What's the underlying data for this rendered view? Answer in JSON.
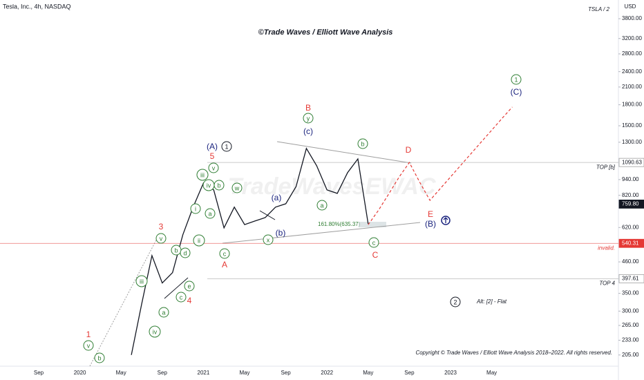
{
  "chart_data": {
    "type": "line",
    "title": "©Trade Waves / Elliott Wave Analysis",
    "symbol": "Tesla, Inc., 4h, NASDAQ",
    "ratio_label": "TSLA / 2",
    "currency": "USD",
    "watermark": "TradeWavesEWAC",
    "copyright": "Copyright © Trade Waves / Elliott Wave Analysis 2018–2022. All rights reserved.",
    "alt_label": "Alt: [2] - Flat",
    "fib_label": "161.80%(635.37)",
    "log_scale": true,
    "grid": false,
    "categories": [
      "Sep",
      null,
      null,
      null,
      "2020",
      null,
      null,
      null,
      "May",
      null,
      null,
      null,
      "Sep",
      null,
      null,
      null,
      "2021",
      null,
      null,
      null,
      "May",
      null,
      null,
      null,
      "Sep",
      null,
      null,
      null,
      "2022",
      null,
      null,
      null,
      "May",
      null,
      null,
      null,
      "Sep",
      null,
      null,
      null,
      "2023",
      null,
      null,
      null,
      "May",
      null,
      null,
      null
    ],
    "series": [
      {
        "color": "#131722",
        "dashed": false,
        "values": [
          null,
          null,
          null,
          null,
          null,
          null,
          null,
          null,
          null,
          205,
          319,
          486,
          383,
          419,
          582,
          740,
          912,
          859,
          618,
          740,
          636,
          656,
          676,
          740,
          762,
          885,
          1232,
          1060,
          859,
          834,
          998,
          1125,
          640,
          null,
          null,
          null,
          null,
          null,
          null,
          null,
          null,
          null,
          null,
          null,
          null,
          null,
          null,
          null
        ]
      },
      {
        "color": "#e53935",
        "dashed": true,
        "values": [
          null,
          null,
          null,
          null,
          null,
          null,
          null,
          null,
          null,
          null,
          null,
          null,
          null,
          null,
          null,
          null,
          null,
          null,
          null,
          null,
          null,
          null,
          null,
          null,
          null,
          null,
          null,
          null,
          null,
          null,
          null,
          null,
          635,
          720,
          830,
          960,
          1090,
          920,
          785,
          869,
          962,
          1065,
          1179,
          1305,
          1444,
          1599,
          1765,
          null
        ]
      }
    ],
    "ylim": [
      186,
      4470
    ],
    "yticks": [
      {
        "value": 3800,
        "label": "3800.00"
      },
      {
        "value": 3200,
        "label": "3200.00"
      },
      {
        "value": 2800,
        "label": "2800.00"
      },
      {
        "value": 2400,
        "label": "2400.00"
      },
      {
        "value": 2100,
        "label": "2100.00"
      },
      {
        "value": 1800,
        "label": "1800.00"
      },
      {
        "value": 1500,
        "label": "1500.00"
      },
      {
        "value": 1300,
        "label": "1300.00"
      },
      {
        "value": 940,
        "label": "940.00"
      },
      {
        "value": 820,
        "label": "820.00"
      },
      {
        "value": 620,
        "label": "620.00"
      },
      {
        "value": 460,
        "label": "460.00"
      },
      {
        "value": 350,
        "label": "350.00"
      },
      {
        "value": 300,
        "label": "300.00"
      },
      {
        "value": 265,
        "label": "265.00"
      },
      {
        "value": 233,
        "label": "233.00"
      },
      {
        "value": 205,
        "label": "205.00"
      }
    ],
    "levels": [
      {
        "value": 1090.63,
        "label": "1090.63",
        "note": "TOP [b]",
        "color": "#9e9e9e"
      },
      {
        "value": 759.8,
        "label": "759.80",
        "color": "#131722"
      },
      {
        "value": 540.31,
        "label": "540.31",
        "note": "invalid.",
        "color": "#e53935"
      },
      {
        "value": 397.61,
        "label": "397.61",
        "note": "TOP 4",
        "color": "#9e9e9e"
      }
    ],
    "annotations": [
      {
        "text": "v",
        "color": "#2e7d32",
        "circled": true
      },
      {
        "text": "b",
        "color": "#2e7d32",
        "circled": true
      },
      {
        "text": "iii",
        "color": "#2e7d32",
        "circled": true
      },
      {
        "text": "iv",
        "color": "#2e7d32",
        "circled": true
      },
      {
        "text": "a",
        "color": "#2e7d32",
        "circled": true
      },
      {
        "text": "c",
        "color": "#2e7d32",
        "circled": true
      },
      {
        "text": "e",
        "color": "#2e7d32",
        "circled": true
      },
      {
        "text": "v",
        "color": "#2e7d32",
        "circled": true
      },
      {
        "text": "b",
        "color": "#2e7d32",
        "circled": true
      },
      {
        "text": "d",
        "color": "#2e7d32",
        "circled": true
      },
      {
        "text": "i",
        "color": "#2e7d32",
        "circled": true
      },
      {
        "text": "ii",
        "color": "#2e7d32",
        "circled": true
      },
      {
        "text": "iii",
        "color": "#2e7d32",
        "circled": true
      },
      {
        "text": "a",
        "color": "#2e7d32",
        "circled": true
      },
      {
        "text": "v",
        "color": "#2e7d32",
        "circled": true
      },
      {
        "text": "b",
        "color": "#2e7d32",
        "circled": true
      },
      {
        "text": "iv",
        "color": "#2e7d32",
        "circled": true
      },
      {
        "text": "w",
        "color": "#2e7d32",
        "circled": true
      },
      {
        "text": "c",
        "color": "#2e7d32",
        "circled": true
      },
      {
        "text": "x",
        "color": "#2e7d32",
        "circled": true
      },
      {
        "text": "a",
        "color": "#2e7d32",
        "circled": true
      },
      {
        "text": "b",
        "color": "#2e7d32",
        "circled": true
      },
      {
        "text": "y",
        "color": "#2e7d32",
        "circled": true
      },
      {
        "text": "c",
        "color": "#2e7d32",
        "circled": true
      },
      {
        "text": "1",
        "color": "#e53935",
        "circled": false
      },
      {
        "text": "3",
        "color": "#e53935",
        "circled": false
      },
      {
        "text": "4",
        "color": "#e53935",
        "circled": false
      },
      {
        "text": "5",
        "color": "#e53935",
        "circled": false
      },
      {
        "text": "A",
        "color": "#e53935",
        "circled": false
      },
      {
        "text": "B",
        "color": "#e53935",
        "circled": false
      },
      {
        "text": "C",
        "color": "#e53935",
        "circled": false
      },
      {
        "text": "D",
        "color": "#e53935",
        "circled": false
      },
      {
        "text": "E",
        "color": "#e53935",
        "circled": false
      },
      {
        "text": "(A)",
        "color": "#1a237e",
        "circled": false
      },
      {
        "text": "(a)",
        "color": "#1a237e",
        "circled": false
      },
      {
        "text": "(b)",
        "color": "#1a237e",
        "circled": false
      },
      {
        "text": "(c)",
        "color": "#1a237e",
        "circled": false
      },
      {
        "text": "(B)",
        "color": "#1a237e",
        "circled": false
      },
      {
        "text": "(C)",
        "color": "#1a237e",
        "circled": false
      },
      {
        "text": "1",
        "color": "#131722",
        "circled": true
      },
      {
        "text": "2",
        "color": "#131722",
        "circled": true
      },
      {
        "text": "1",
        "color": "#2e7d32",
        "circled": true
      }
    ]
  }
}
